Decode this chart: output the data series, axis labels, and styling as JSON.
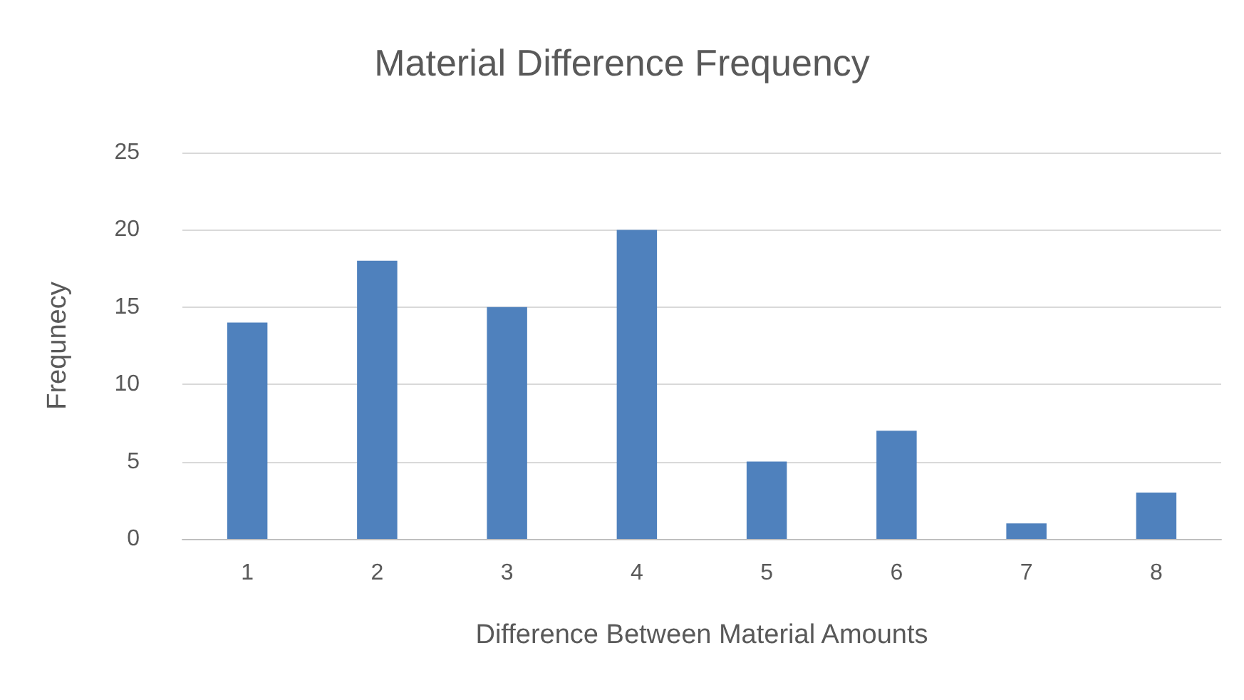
{
  "chart_data": {
    "type": "bar",
    "title": "Material Difference Frequency",
    "xlabel": "Difference Between Material Amounts",
    "ylabel": "Frequnecy",
    "categories": [
      "1",
      "2",
      "3",
      "4",
      "5",
      "6",
      "7",
      "8"
    ],
    "values": [
      14,
      18,
      15,
      20,
      5,
      7,
      1,
      3
    ],
    "color": "#4f81bd",
    "ylim": [
      0,
      25
    ],
    "yticks": [
      0,
      5,
      10,
      15,
      20,
      25
    ],
    "grid": "y"
  }
}
